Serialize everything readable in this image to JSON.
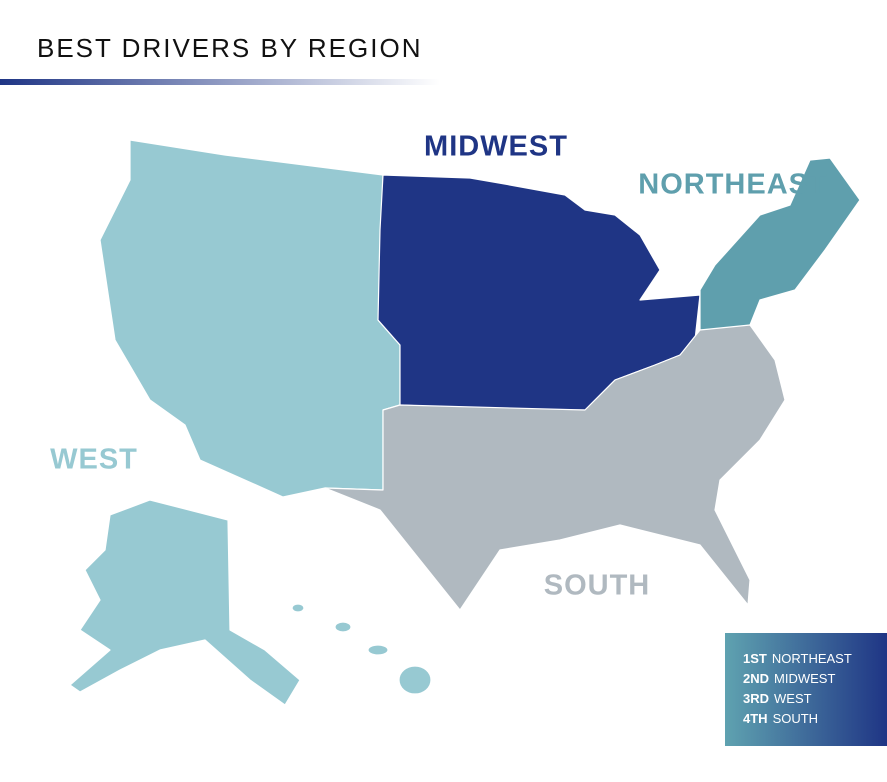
{
  "header": {
    "title": "BEST DRIVERS BY REGION"
  },
  "regions": [
    {
      "label": "MIDWEST",
      "color": "#1f3585"
    },
    {
      "label": "NORTHEAST",
      "color": "#5f9fad"
    },
    {
      "label": "WEST",
      "color": "#97c9d2"
    },
    {
      "label": "SOUTH",
      "color": "#b0b9c0"
    }
  ],
  "legend": [
    {
      "rank": "1ST",
      "region": "NORTHEAST"
    },
    {
      "rank": "2ND",
      "region": "MIDWEST"
    },
    {
      "rank": "3RD",
      "region": "WEST"
    },
    {
      "rank": "4TH",
      "region": "SOUTH"
    }
  ]
}
